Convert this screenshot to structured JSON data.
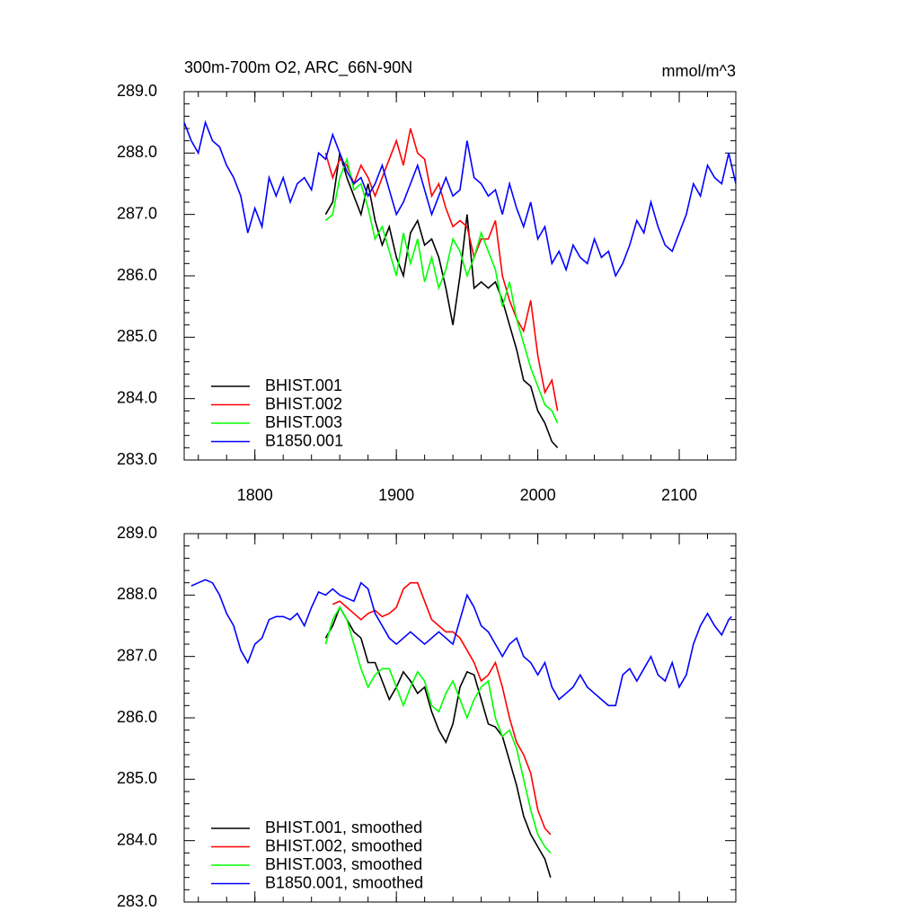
{
  "chart_data": [
    {
      "type": "line",
      "title": "300m-700m O2, ARC_66N-90N",
      "unit_label": "mmol/m^3",
      "xlim": [
        1750,
        2140
      ],
      "xticks": [
        1800,
        1900,
        2000,
        2100
      ],
      "ylim": [
        283,
        289
      ],
      "yticks": [
        {
          "value": 283,
          "label": "283.0"
        },
        {
          "value": 284,
          "label": "284.0"
        },
        {
          "value": 285,
          "label": "285.0"
        },
        {
          "value": 286,
          "label": "286.0"
        },
        {
          "value": 287,
          "label": "287.0"
        },
        {
          "value": 288,
          "label": "288.0"
        },
        {
          "value": 289,
          "label": "289.0"
        }
      ],
      "legend": "lower left",
      "series": [
        {
          "name": "BHIST.001",
          "color": "#000000",
          "x": [
            1850,
            1855,
            1860,
            1865,
            1870,
            1875,
            1880,
            1885,
            1890,
            1895,
            1900,
            1905,
            1910,
            1915,
            1920,
            1925,
            1930,
            1935,
            1940,
            1945,
            1950,
            1955,
            1960,
            1965,
            1970,
            1975,
            1980,
            1985,
            1990,
            1995,
            2000,
            2005,
            2010,
            2014
          ],
          "values": [
            287.0,
            287.2,
            288.0,
            287.6,
            287.3,
            287.0,
            287.5,
            286.9,
            286.5,
            286.8,
            286.3,
            286.0,
            286.7,
            286.9,
            286.5,
            286.6,
            286.3,
            285.8,
            285.2,
            286.0,
            287.0,
            285.8,
            285.9,
            285.8,
            285.9,
            285.6,
            285.2,
            284.8,
            284.3,
            284.2,
            283.8,
            283.6,
            283.3,
            283.2
          ]
        },
        {
          "name": "BHIST.002",
          "color": "#ff0000",
          "x": [
            1850,
            1855,
            1860,
            1865,
            1870,
            1875,
            1880,
            1885,
            1890,
            1895,
            1900,
            1905,
            1910,
            1915,
            1920,
            1925,
            1930,
            1935,
            1940,
            1945,
            1950,
            1955,
            1960,
            1965,
            1970,
            1975,
            1980,
            1985,
            1990,
            1995,
            2000,
            2005,
            2010,
            2014
          ],
          "values": [
            288.0,
            287.6,
            287.9,
            287.8,
            287.5,
            287.8,
            287.6,
            287.3,
            287.6,
            287.9,
            288.2,
            287.8,
            288.4,
            288.0,
            287.9,
            287.3,
            287.5,
            287.1,
            286.8,
            286.9,
            286.8,
            286.3,
            286.6,
            286.6,
            286.9,
            286.0,
            285.6,
            285.3,
            285.1,
            285.6,
            284.7,
            284.1,
            284.3,
            283.8
          ]
        },
        {
          "name": "BHIST.003",
          "color": "#00ff00",
          "x": [
            1850,
            1855,
            1860,
            1865,
            1870,
            1875,
            1880,
            1885,
            1890,
            1895,
            1900,
            1905,
            1910,
            1915,
            1920,
            1925,
            1930,
            1935,
            1940,
            1945,
            1950,
            1955,
            1960,
            1965,
            1970,
            1975,
            1980,
            1985,
            1990,
            1995,
            2000,
            2005,
            2010,
            2014
          ],
          "values": [
            286.9,
            287.0,
            287.6,
            287.9,
            287.4,
            287.5,
            287.1,
            286.6,
            286.8,
            286.4,
            286.0,
            286.7,
            286.2,
            286.6,
            285.9,
            286.3,
            285.8,
            286.1,
            286.6,
            286.4,
            286.0,
            286.3,
            286.7,
            286.4,
            286.1,
            285.5,
            285.9,
            285.3,
            284.9,
            284.5,
            284.2,
            283.9,
            283.8,
            283.6
          ]
        },
        {
          "name": "B1850.001",
          "color": "#0000ff",
          "x": [
            1750,
            1755,
            1760,
            1765,
            1770,
            1775,
            1780,
            1785,
            1790,
            1795,
            1800,
            1805,
            1810,
            1815,
            1820,
            1825,
            1830,
            1835,
            1840,
            1845,
            1850,
            1855,
            1860,
            1865,
            1870,
            1875,
            1880,
            1885,
            1890,
            1895,
            1900,
            1905,
            1910,
            1915,
            1920,
            1925,
            1930,
            1935,
            1940,
            1945,
            1950,
            1955,
            1960,
            1965,
            1970,
            1975,
            1980,
            1985,
            1990,
            1995,
            2000,
            2005,
            2010,
            2015,
            2020,
            2025,
            2030,
            2035,
            2040,
            2045,
            2050,
            2055,
            2060,
            2065,
            2070,
            2075,
            2080,
            2085,
            2090,
            2095,
            2100,
            2105,
            2110,
            2115,
            2120,
            2125,
            2130,
            2135,
            2140
          ],
          "values": [
            288.5,
            288.2,
            288.0,
            288.5,
            288.2,
            288.1,
            287.8,
            287.6,
            287.3,
            286.7,
            287.1,
            286.8,
            287.6,
            287.3,
            287.6,
            287.2,
            287.5,
            287.6,
            287.4,
            288.0,
            287.9,
            288.3,
            288.0,
            287.7,
            287.5,
            287.6,
            287.3,
            287.5,
            287.8,
            287.4,
            287.0,
            287.2,
            287.5,
            287.8,
            287.4,
            287.0,
            287.3,
            287.6,
            287.3,
            287.4,
            288.2,
            287.6,
            287.5,
            287.3,
            287.4,
            287.0,
            287.5,
            287.1,
            286.8,
            287.2,
            286.6,
            286.8,
            286.2,
            286.4,
            286.1,
            286.5,
            286.3,
            286.2,
            286.6,
            286.3,
            286.4,
            286.0,
            286.2,
            286.5,
            286.9,
            286.7,
            287.2,
            286.8,
            286.5,
            286.4,
            286.7,
            287.0,
            287.5,
            287.3,
            287.8,
            287.6,
            287.5,
            288.0,
            287.5
          ]
        }
      ]
    },
    {
      "type": "line",
      "xlim": [
        1750,
        2140
      ],
      "xticks": [
        1800,
        1900,
        2000,
        2100
      ],
      "ylim": [
        283,
        289
      ],
      "yticks": [
        {
          "value": 283,
          "label": "283.0"
        },
        {
          "value": 284,
          "label": "284.0"
        },
        {
          "value": 285,
          "label": "285.0"
        },
        {
          "value": 286,
          "label": "286.0"
        },
        {
          "value": 287,
          "label": "287.0"
        },
        {
          "value": 288,
          "label": "288.0"
        },
        {
          "value": 289,
          "label": "289.0"
        }
      ],
      "legend": "lower left",
      "series": [
        {
          "name": "BHIST.001, smoothed",
          "color": "#000000",
          "x": [
            1850,
            1855,
            1860,
            1865,
            1870,
            1875,
            1880,
            1885,
            1890,
            1895,
            1900,
            1905,
            1910,
            1915,
            1920,
            1925,
            1930,
            1935,
            1940,
            1945,
            1950,
            1955,
            1960,
            1965,
            1970,
            1975,
            1980,
            1985,
            1990,
            1995,
            2000,
            2005,
            2009
          ],
          "values": [
            287.3,
            287.5,
            287.8,
            287.6,
            287.4,
            287.3,
            286.9,
            286.9,
            286.6,
            286.3,
            286.5,
            286.75,
            286.6,
            286.4,
            286.5,
            286.1,
            285.8,
            285.6,
            285.9,
            286.5,
            286.75,
            286.7,
            286.3,
            285.9,
            285.85,
            285.7,
            285.3,
            284.9,
            284.4,
            284.1,
            283.9,
            283.7,
            283.4
          ]
        },
        {
          "name": "BHIST.002, smoothed",
          "color": "#ff0000",
          "x": [
            1855,
            1860,
            1865,
            1870,
            1875,
            1880,
            1885,
            1890,
            1895,
            1900,
            1905,
            1910,
            1915,
            1920,
            1925,
            1930,
            1935,
            1940,
            1945,
            1950,
            1955,
            1960,
            1965,
            1970,
            1975,
            1980,
            1985,
            1990,
            1995,
            2000,
            2005,
            2009
          ],
          "values": [
            287.85,
            287.9,
            287.8,
            287.7,
            287.6,
            287.7,
            287.75,
            287.65,
            287.7,
            287.8,
            288.1,
            288.2,
            288.2,
            287.9,
            287.6,
            287.5,
            287.4,
            287.4,
            287.3,
            287.1,
            286.9,
            286.6,
            286.7,
            286.9,
            286.5,
            286.0,
            285.6,
            285.4,
            285.1,
            284.5,
            284.2,
            284.1
          ]
        },
        {
          "name": "BHIST.003, smoothed",
          "color": "#00ff00",
          "x": [
            1850,
            1855,
            1860,
            1865,
            1870,
            1875,
            1880,
            1885,
            1890,
            1895,
            1900,
            1905,
            1910,
            1915,
            1920,
            1925,
            1930,
            1935,
            1940,
            1945,
            1950,
            1955,
            1960,
            1965,
            1970,
            1975,
            1980,
            1985,
            1990,
            1995,
            2000,
            2005,
            2009
          ],
          "values": [
            287.2,
            287.6,
            287.8,
            287.6,
            287.2,
            286.8,
            286.5,
            286.7,
            286.8,
            286.8,
            286.5,
            286.2,
            286.5,
            286.75,
            286.6,
            286.2,
            286.1,
            286.4,
            286.6,
            286.3,
            286.0,
            286.3,
            286.5,
            286.6,
            286.0,
            285.7,
            285.8,
            285.5,
            285.0,
            284.5,
            284.1,
            283.9,
            283.8
          ]
        },
        {
          "name": "B1850.001, smoothed",
          "color": "#0000ff",
          "x": [
            1755,
            1760,
            1765,
            1770,
            1775,
            1780,
            1785,
            1790,
            1795,
            1800,
            1805,
            1810,
            1815,
            1820,
            1825,
            1830,
            1835,
            1840,
            1845,
            1850,
            1855,
            1860,
            1865,
            1870,
            1875,
            1880,
            1885,
            1890,
            1895,
            1900,
            1905,
            1910,
            1915,
            1920,
            1925,
            1930,
            1935,
            1940,
            1945,
            1950,
            1955,
            1960,
            1965,
            1970,
            1975,
            1980,
            1985,
            1990,
            1995,
            2000,
            2005,
            2010,
            2015,
            2020,
            2025,
            2030,
            2035,
            2040,
            2045,
            2050,
            2055,
            2060,
            2065,
            2070,
            2075,
            2080,
            2085,
            2090,
            2095,
            2100,
            2105,
            2110,
            2115,
            2120,
            2125,
            2130,
            2135,
            2137
          ],
          "values": [
            288.15,
            288.2,
            288.25,
            288.2,
            288.0,
            287.7,
            287.5,
            287.1,
            286.9,
            287.2,
            287.3,
            287.6,
            287.65,
            287.65,
            287.6,
            287.7,
            287.5,
            287.8,
            288.05,
            288.0,
            288.1,
            288.0,
            287.95,
            287.9,
            288.2,
            288.1,
            287.7,
            287.5,
            287.3,
            287.2,
            287.3,
            287.4,
            287.3,
            287.2,
            287.3,
            287.4,
            287.3,
            287.2,
            287.6,
            288.0,
            287.8,
            287.5,
            287.4,
            287.2,
            287.0,
            287.2,
            287.3,
            287.0,
            286.9,
            286.7,
            286.9,
            286.5,
            286.3,
            286.4,
            286.5,
            286.7,
            286.5,
            286.4,
            286.3,
            286.2,
            286.2,
            286.7,
            286.8,
            286.6,
            286.8,
            287.0,
            286.7,
            286.6,
            286.9,
            286.5,
            286.7,
            287.2,
            287.5,
            287.7,
            287.5,
            287.35,
            287.6,
            287.65
          ]
        }
      ]
    }
  ]
}
